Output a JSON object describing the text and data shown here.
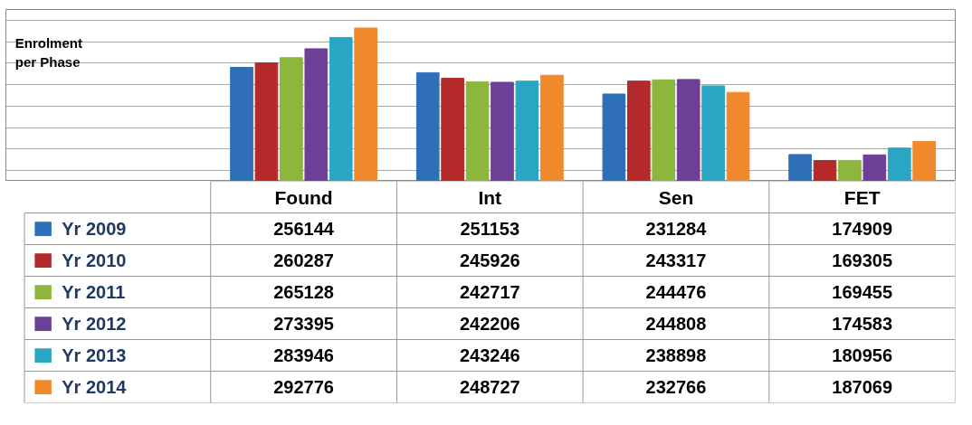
{
  "chart_data": {
    "type": "bar",
    "annotations": [
      "Enrolment per Phase"
    ],
    "categories": [
      "Found",
      "Int",
      "Sen",
      "FET"
    ],
    "series": [
      {
        "name": "Yr 2009",
        "color": "#2e6fb7",
        "values": [
          256144,
          251153,
          231284,
          174909
        ]
      },
      {
        "name": "Yr 2010",
        "color": "#b42a2a",
        "values": [
          260287,
          245926,
          243317,
          169305
        ]
      },
      {
        "name": "Yr 2011",
        "color": "#8db63c",
        "values": [
          265128,
          242717,
          244476,
          169455
        ]
      },
      {
        "name": "Yr 2012",
        "color": "#6e3f96",
        "values": [
          273395,
          242206,
          244808,
          174583
        ]
      },
      {
        "name": "Yr 2013",
        "color": "#2aa6c4",
        "values": [
          283946,
          243246,
          238898,
          180956
        ]
      },
      {
        "name": "Yr 2014",
        "color": "#f0892b",
        "values": [
          292776,
          248727,
          232766,
          187069
        ]
      }
    ],
    "ylim": [
      150000,
      310000
    ],
    "grid": "y",
    "data_labels": true,
    "legend": "bottom left",
    "tick_labels": "x"
  }
}
